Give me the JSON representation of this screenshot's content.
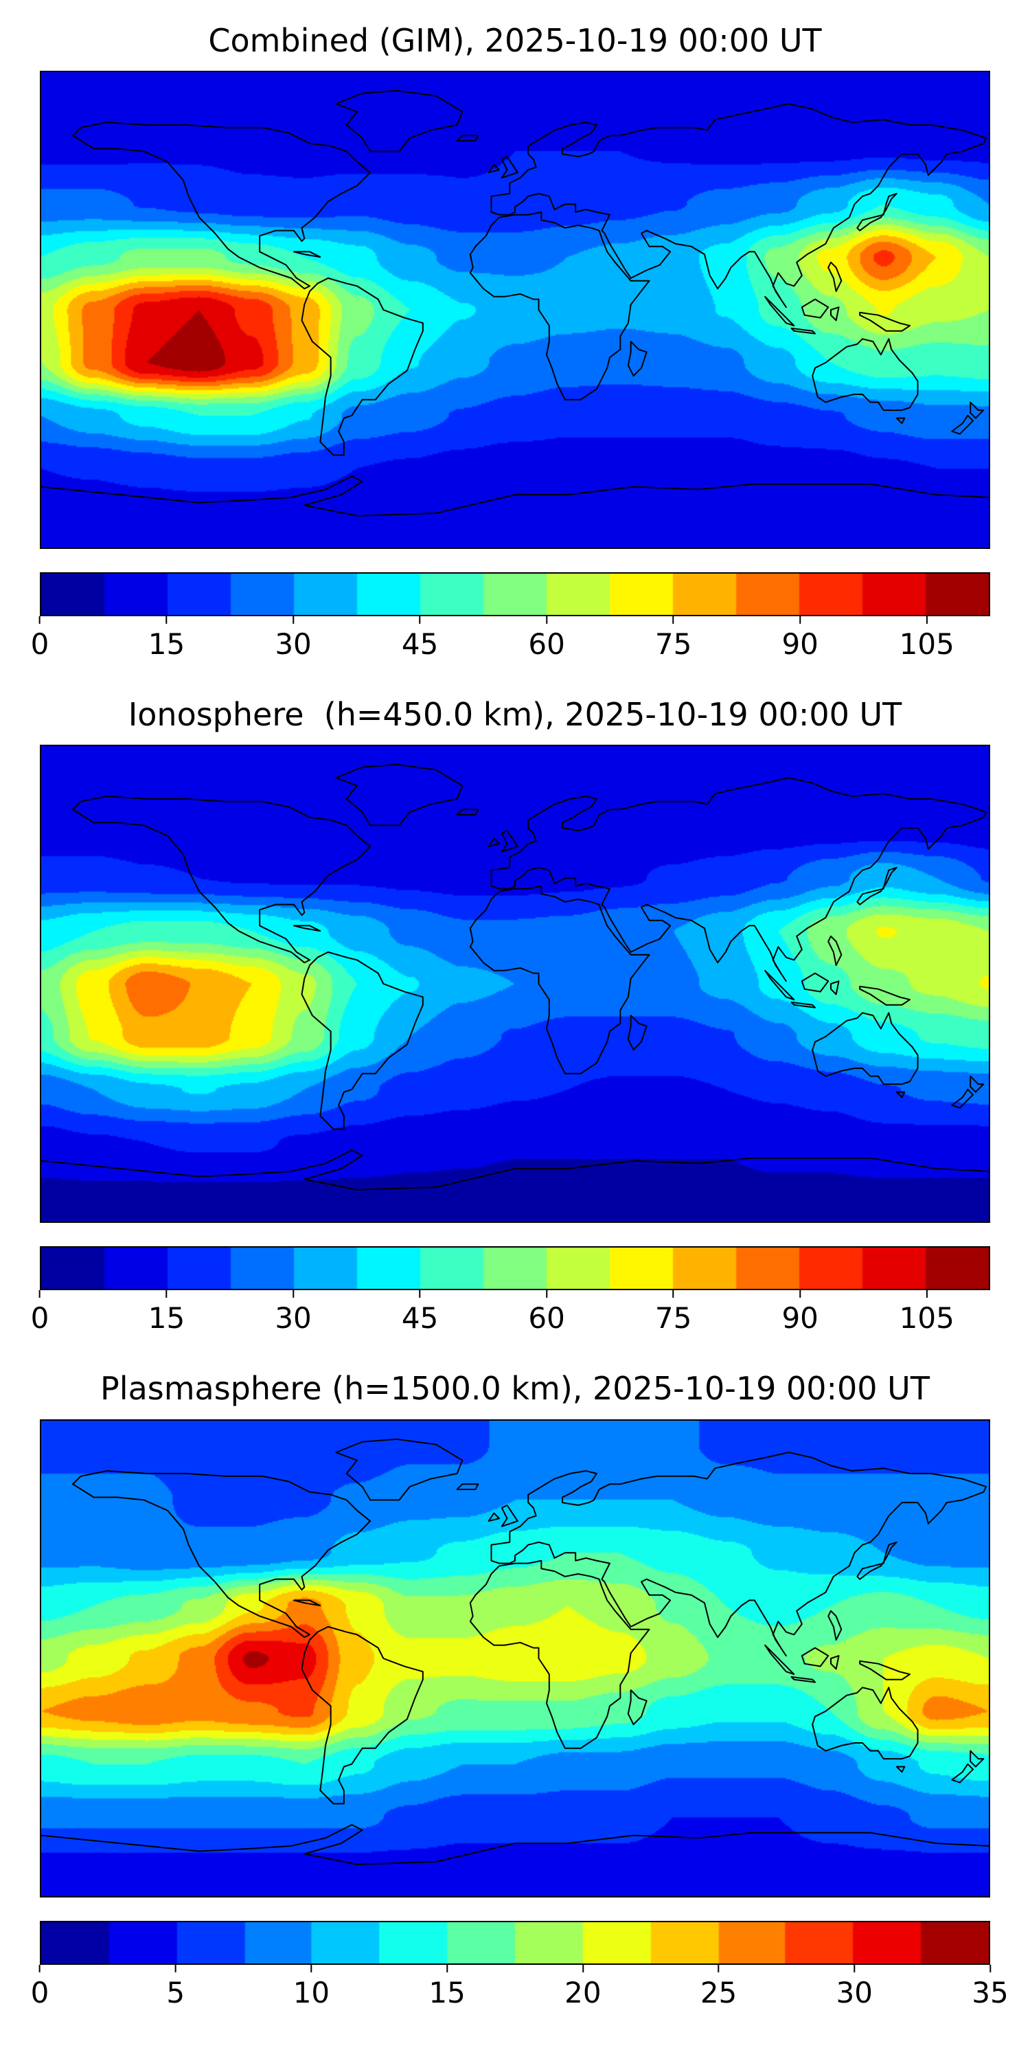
{
  "figure": {
    "background": "#ffffff",
    "coastline_color": "#000000",
    "colormap": "jet"
  },
  "chart_data": [
    {
      "type": "heatmap",
      "title": "Combined (GIM), 2025-10-19 00:00 UT",
      "projection": "equirectangular world map, lon -180..180, lat -90..90",
      "colormap": "jet",
      "vmin": 0,
      "vmax": 112.5,
      "levels": 15,
      "colorbar_ticks": [
        0,
        15,
        30,
        45,
        60,
        75,
        90,
        105
      ],
      "grid": {
        "lats": [
          80,
          60,
          40,
          20,
          0,
          -20,
          -40,
          -60,
          -80
        ],
        "lons": [
          -180,
          -160,
          -140,
          -120,
          -100,
          -80,
          -60,
          -40,
          -20,
          0,
          20,
          40,
          60,
          80,
          100,
          120,
          140,
          160,
          180
        ],
        "values": [
          [
            10,
            10,
            10,
            10,
            10,
            10,
            10,
            11,
            12,
            12,
            12,
            12,
            11,
            10,
            10,
            10,
            10,
            10,
            10
          ],
          [
            13,
            13,
            14,
            14,
            13,
            12,
            12,
            13,
            14,
            15,
            15,
            15,
            14,
            13,
            13,
            13,
            14,
            13,
            13
          ],
          [
            25,
            25,
            22,
            20,
            18,
            18,
            20,
            18,
            16,
            16,
            18,
            20,
            22,
            25,
            28,
            35,
            45,
            40,
            30
          ],
          [
            45,
            50,
            55,
            55,
            50,
            45,
            40,
            32,
            28,
            28,
            30,
            32,
            35,
            40,
            55,
            70,
            92,
            75,
            60
          ],
          [
            65,
            85,
            100,
            105,
            95,
            80,
            55,
            45,
            38,
            35,
            33,
            32,
            33,
            38,
            48,
            58,
            68,
            62,
            60
          ],
          [
            60,
            85,
            105,
            110,
            100,
            80,
            50,
            38,
            32,
            28,
            26,
            25,
            26,
            28,
            35,
            45,
            50,
            48,
            50
          ],
          [
            30,
            35,
            40,
            45,
            45,
            38,
            28,
            25,
            22,
            20,
            18,
            18,
            18,
            18,
            20,
            22,
            25,
            28,
            28
          ],
          [
            15,
            16,
            18,
            20,
            20,
            18,
            15,
            14,
            12,
            10,
            10,
            10,
            10,
            10,
            12,
            12,
            14,
            15,
            15
          ],
          [
            8,
            8,
            8,
            8,
            8,
            8,
            8,
            8,
            8,
            8,
            8,
            8,
            8,
            8,
            8,
            8,
            8,
            8,
            8
          ]
        ]
      }
    },
    {
      "type": "heatmap",
      "title": "Ionosphere  (h=450.0 km), 2025-10-19 00:00 UT",
      "projection": "equirectangular world map, lon -180..180, lat -90..90",
      "colormap": "jet",
      "vmin": 0,
      "vmax": 112.5,
      "levels": 15,
      "colorbar_ticks": [
        0,
        15,
        30,
        45,
        60,
        75,
        90,
        105
      ],
      "grid": {
        "lats": [
          80,
          60,
          40,
          20,
          0,
          -20,
          -40,
          -60,
          -80
        ],
        "lons": [
          -180,
          -160,
          -140,
          -120,
          -100,
          -80,
          -60,
          -40,
          -20,
          0,
          20,
          40,
          60,
          80,
          100,
          120,
          140,
          160,
          180
        ],
        "values": [
          [
            8,
            8,
            8,
            8,
            8,
            8,
            8,
            8,
            9,
            9,
            9,
            9,
            9,
            8,
            8,
            8,
            8,
            8,
            8
          ],
          [
            10,
            10,
            10,
            10,
            9,
            9,
            9,
            10,
            10,
            11,
            11,
            11,
            10,
            10,
            10,
            10,
            10,
            10,
            10
          ],
          [
            18,
            18,
            16,
            15,
            14,
            14,
            14,
            13,
            12,
            12,
            13,
            14,
            16,
            18,
            22,
            28,
            35,
            30,
            22
          ],
          [
            40,
            45,
            48,
            48,
            45,
            40,
            34,
            28,
            24,
            24,
            25,
            28,
            30,
            35,
            45,
            58,
            68,
            65,
            60
          ],
          [
            55,
            72,
            88,
            82,
            75,
            62,
            45,
            38,
            32,
            30,
            28,
            28,
            28,
            32,
            40,
            50,
            58,
            62,
            68
          ],
          [
            50,
            68,
            80,
            80,
            72,
            58,
            40,
            30,
            25,
            22,
            20,
            20,
            20,
            22,
            28,
            35,
            42,
            46,
            48
          ],
          [
            25,
            30,
            36,
            38,
            36,
            30,
            24,
            20,
            18,
            16,
            15,
            14,
            14,
            15,
            16,
            18,
            22,
            24,
            25
          ],
          [
            12,
            14,
            15,
            16,
            16,
            14,
            12,
            10,
            9,
            8,
            8,
            8,
            8,
            8,
            10,
            10,
            12,
            12,
            12
          ],
          [
            6,
            6,
            6,
            6,
            6,
            6,
            6,
            6,
            6,
            6,
            6,
            6,
            6,
            6,
            6,
            6,
            6,
            6,
            6
          ]
        ]
      }
    },
    {
      "type": "heatmap",
      "title": "Plasmasphere (h=1500.0 km), 2025-10-19 00:00 UT",
      "projection": "equirectangular world map, lon -180..180, lat -90..90",
      "colormap": "jet",
      "vmin": 0,
      "vmax": 35,
      "levels": 14,
      "colorbar_ticks": [
        0,
        5,
        10,
        15,
        20,
        25,
        30,
        35
      ],
      "grid": {
        "lats": [
          80,
          60,
          40,
          20,
          0,
          -20,
          -40,
          -60,
          -80
        ],
        "lons": [
          -180,
          -160,
          -140,
          -120,
          -100,
          -80,
          -60,
          -40,
          -20,
          0,
          20,
          40,
          60,
          80,
          100,
          120,
          140,
          160,
          180
        ],
        "values": [
          [
            7,
            7,
            7,
            6,
            6,
            6,
            6,
            7,
            7,
            8,
            8,
            8,
            8,
            7,
            7,
            7,
            7,
            7,
            7
          ],
          [
            8,
            8,
            8,
            7,
            7,
            7,
            8,
            9,
            9,
            10,
            10,
            10,
            10,
            9,
            8,
            8,
            8,
            8,
            8
          ],
          [
            9,
            9,
            8,
            8,
            8,
            9,
            11,
            12,
            13,
            14,
            15,
            15,
            14,
            13,
            12,
            11,
            10,
            9,
            9
          ],
          [
            14,
            15,
            16,
            18,
            22,
            26,
            22,
            18,
            18,
            19,
            20,
            19,
            17,
            15,
            14,
            15,
            16,
            15,
            14
          ],
          [
            19,
            21,
            23,
            26,
            33,
            31,
            23,
            21,
            21,
            22,
            22,
            21,
            19,
            17,
            17,
            18,
            20,
            21,
            20
          ],
          [
            25,
            26,
            27,
            26,
            27,
            28,
            22,
            18,
            17,
            17,
            17,
            16,
            14,
            13,
            13,
            15,
            20,
            26,
            25
          ],
          [
            14,
            15,
            15,
            14,
            14,
            15,
            13,
            11,
            10,
            10,
            9,
            9,
            8,
            8,
            8,
            9,
            11,
            13,
            14
          ],
          [
            8,
            8,
            8,
            8,
            8,
            8,
            8,
            7,
            6,
            6,
            6,
            6,
            5,
            5,
            5,
            6,
            7,
            8,
            8
          ],
          [
            4,
            4,
            4,
            4,
            4,
            4,
            4,
            4,
            4,
            4,
            4,
            4,
            4,
            4,
            4,
            4,
            4,
            4,
            4
          ]
        ]
      }
    }
  ]
}
